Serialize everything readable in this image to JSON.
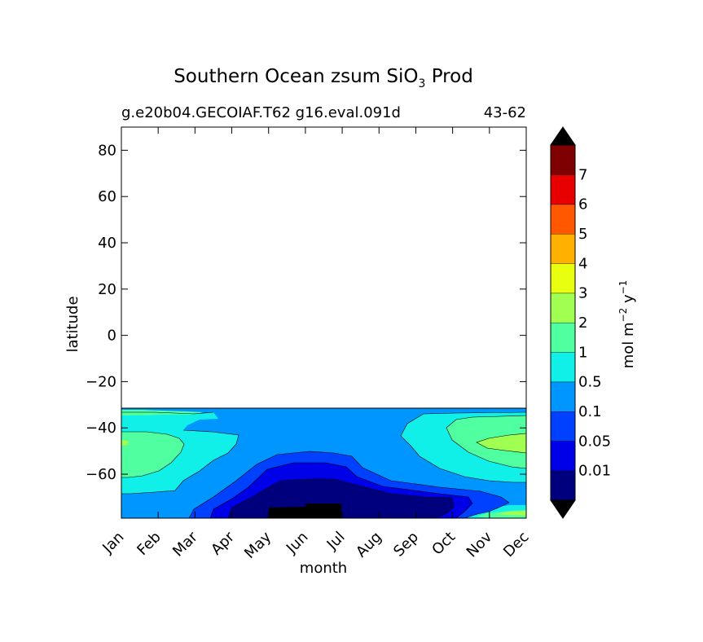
{
  "chart_data": {
    "type": "contourf",
    "title": {
      "main": "Southern Ocean zsum SiO",
      "subscript": "3",
      "suffix": " Prod"
    },
    "subtitle_left": "g.e20b04.GECOIAF.T62 g16.eval.091d",
    "subtitle_right": "43-62",
    "xlabel": "month",
    "ylabel": "latitude",
    "x_categories": [
      "Jan",
      "Feb",
      "Mar",
      "Apr",
      "May",
      "Jun",
      "Jul",
      "Aug",
      "Sep",
      "Oct",
      "Nov",
      "Dec"
    ],
    "xlim": [
      0,
      11
    ],
    "ylim": [
      -79,
      90
    ],
    "y_ticks": [
      {
        "value": 80,
        "label": "80"
      },
      {
        "value": 60,
        "label": "60"
      },
      {
        "value": 40,
        "label": "40"
      },
      {
        "value": 20,
        "label": "20"
      },
      {
        "value": 0,
        "label": "0"
      },
      {
        "value": -20,
        "label": "−20"
      },
      {
        "value": -40,
        "label": "−40"
      },
      {
        "value": -60,
        "label": "−60"
      }
    ],
    "data_extent_lat": [
      -79,
      -32
    ],
    "colorbar": {
      "label": "mol m",
      "label_sup1": "−2",
      "label_mid": " y",
      "label_sup2": "−1",
      "extend": "both",
      "extend_low_color": "#000000",
      "extend_high_color": "#000000",
      "levels": [
        {
          "label": "0.01",
          "color": "#00007f"
        },
        {
          "label": "0.05",
          "color": "#0000e8"
        },
        {
          "label": "0.1",
          "color": "#0040ff"
        },
        {
          "label": "0.5",
          "color": "#0096ff"
        },
        {
          "label": "1",
          "color": "#10f0e8"
        },
        {
          "label": "2",
          "color": "#50ff9f"
        },
        {
          "label": "3",
          "color": "#a0ff50"
        },
        {
          "label": "4",
          "color": "#e8ff10"
        },
        {
          "label": "5",
          "color": "#ffb000"
        },
        {
          "label": "6",
          "color": "#ff5800"
        },
        {
          "label": "7",
          "color": "#e80000"
        },
        {
          "label": "",
          "color": "#7f0000"
        }
      ]
    },
    "colors": {
      "c0": "#00007f",
      "c1": "#0000e8",
      "c2": "#0040ff",
      "c3": "#0096ff",
      "c4": "#10f0e8",
      "c5": "#50ff9f",
      "c6": "#a0ff50",
      "c7": "#e8ff10",
      "c8": "#ffb000",
      "c9": "#ff5800",
      "c10": "#e80000",
      "c11": "#7f0000"
    }
  }
}
